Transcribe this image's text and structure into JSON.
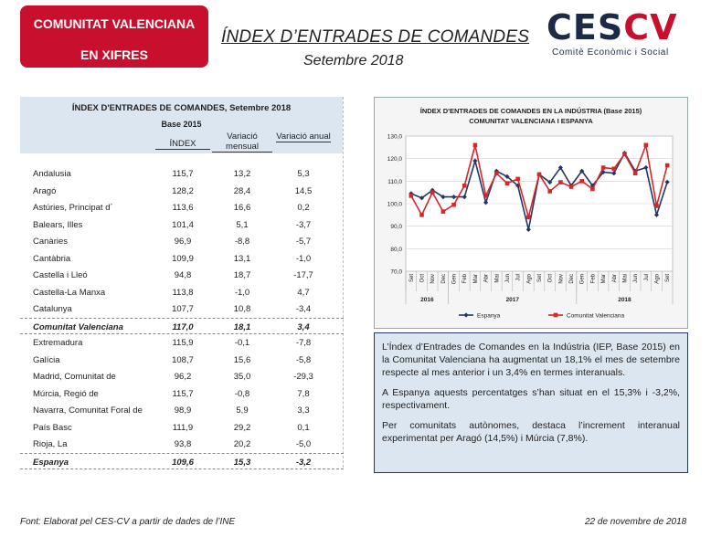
{
  "header": {
    "badge_line1": "COMUNITAT VALENCIANA",
    "badge_line2": "EN XIFRES",
    "title": "ÍNDEX D’ENTRADES DE COMANDES",
    "subtitle": "Setembre 2018",
    "logo_text_a": "CES",
    "logo_text_b": "CV",
    "logo_tagline": "Comitè Econòmic i Social"
  },
  "table": {
    "title": "ÍNDEX D'ENTRADES DE COMANDES, Setembre 2018",
    "base": "Base 2015",
    "columns": [
      "ÍNDEX",
      "Variació mensual",
      "Variació anual"
    ],
    "rows": [
      {
        "name": "Andalusia",
        "index": "115,7",
        "mensual": "13,2",
        "anual": "5,3"
      },
      {
        "name": "Aragó",
        "index": "128,2",
        "mensual": "28,4",
        "anual": "14,5"
      },
      {
        "name": "Astúries, Principat d´",
        "index": "113,6",
        "mensual": "16,6",
        "anual": "0,2"
      },
      {
        "name": "Balears, Illes",
        "index": "101,4",
        "mensual": "5,1",
        "anual": "-3,7"
      },
      {
        "name": "Canàries",
        "index": "96,9",
        "mensual": "-8,8",
        "anual": "-5,7"
      },
      {
        "name": "Cantàbria",
        "index": "109,9",
        "mensual": "13,1",
        "anual": "-1,0"
      },
      {
        "name": "Castella i Lleó",
        "index": "94,8",
        "mensual": "18,7",
        "anual": "-17,7"
      },
      {
        "name": "Castella-La Manxa",
        "index": "113,8",
        "mensual": "-1,0",
        "anual": "4,7"
      },
      {
        "name": "Catalunya",
        "index": "107,7",
        "mensual": "10,8",
        "anual": "-3,4"
      },
      {
        "name": "Comunitat Valenciana",
        "index": "117,0",
        "mensual": "18,1",
        "anual": "3,4",
        "bold": true
      },
      {
        "name": "Extremadura",
        "index": "115,9",
        "mensual": "-0,1",
        "anual": "-7,8"
      },
      {
        "name": "Galícia",
        "index": "108,7",
        "mensual": "15,6",
        "anual": "-5,8"
      },
      {
        "name": "Madrid, Comunitat de",
        "index": "96,2",
        "mensual": "35,0",
        "anual": "-29,3"
      },
      {
        "name": "Múrcia, Regió de",
        "index": "115,7",
        "mensual": "-0,8",
        "anual": "7,8"
      },
      {
        "name": "Navarra, Comunitat Foral de",
        "index": "98,9",
        "mensual": "5,9",
        "anual": "3,3"
      },
      {
        "name": "País Basc",
        "index": "111,9",
        "mensual": "29,2",
        "anual": "0,1"
      },
      {
        "name": "Rioja, La",
        "index": "93,8",
        "mensual": "20,2",
        "anual": "-5,0"
      },
      {
        "name": "Espanya",
        "index": "109,6",
        "mensual": "15,3",
        "anual": "-3,2",
        "bold": true
      }
    ]
  },
  "chart_data": {
    "type": "line",
    "title": "ÍNDEX D'ENTRADES DE COMANDES EN LA INDÚSTRIA (Base 2015)",
    "subtitle": "COMUNITAT VALENCIANA I ESPANYA",
    "categories": [
      "Set",
      "Oct",
      "Nov",
      "Dec",
      "Gen",
      "Feb",
      "Mar",
      "Abr",
      "Mai",
      "Jun",
      "Jul",
      "Ago",
      "Set",
      "Oct",
      "Nov",
      "Dec",
      "Gen",
      "Feb",
      "Mar",
      "Abr",
      "Mai",
      "Jun",
      "Jul",
      "Ago",
      "Set"
    ],
    "year_groups": [
      {
        "label": "2016",
        "start": 0,
        "end": 3
      },
      {
        "label": "2017",
        "start": 4,
        "end": 15
      },
      {
        "label": "2018",
        "start": 16,
        "end": 24
      }
    ],
    "ylim": [
      70,
      130
    ],
    "yticks": [
      "70,0",
      "80,0",
      "90,0",
      "100,0",
      "110,0",
      "120,0",
      "130,0"
    ],
    "grid": true,
    "legend": "bottom",
    "series": [
      {
        "name": "Espanya",
        "color": "#1f3864",
        "marker": "diamond",
        "values": [
          104.5,
          102.5,
          106.0,
          103.0,
          103.0,
          103.0,
          119.0,
          100.5,
          114.5,
          112.0,
          108.0,
          88.5,
          113.0,
          109.5,
          116.0,
          108.0,
          114.5,
          108.0,
          114.0,
          113.5,
          122.5,
          114.5,
          116.0,
          95.0,
          109.6
        ]
      },
      {
        "name": "Comunitat Valenciana",
        "color": "#d62728",
        "marker": "square",
        "values": [
          103.5,
          95.0,
          105.0,
          96.5,
          99.5,
          108.0,
          126.0,
          103.5,
          113.5,
          109.0,
          111.0,
          94.0,
          113.0,
          105.5,
          109.5,
          107.5,
          110.0,
          106.5,
          116.0,
          115.5,
          122.0,
          113.5,
          126.0,
          99.0,
          117.0
        ]
      }
    ]
  },
  "commentary": {
    "p1": "L’Índex d’Entrades de Comandes en la Indústria (IEP, Base 2015) en la Comunitat Valenciana ha augmentat un 18,1% el mes de setembre respecte al mes anterior i un 3,4% en termes interanuals.",
    "p2": "A Espanya aquests percentatges s’han situat en el 15,3% i -3,2%, respectivament.",
    "p3": "Per comunitats autònomes, destaca l’increment interanual experimentat per Aragó (14,5%) i Múrcia (7,8%)."
  },
  "footer": {
    "source": "Font: Elaborat pel CES-CV a partir de dades de l’INE",
    "date": "22 de novembre de 2018"
  }
}
